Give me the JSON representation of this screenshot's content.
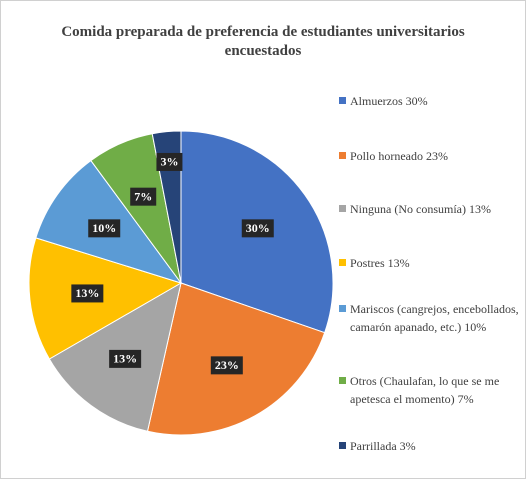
{
  "chart_data": {
    "type": "pie",
    "title": "Comida preparada de preferencia de estudiantes universitarios encuestados",
    "categories": [
      "Almuerzos 30%",
      "Pollo horneado 23%",
      "Ninguna (No consumía) 13%",
      "Postres 13%",
      "Mariscos (cangrejos, encebollados, camarón apanado, etc.) 10%",
      "Otros (Chaulafan, lo que se me apetesca el momento) 7%",
      "Parrillada 3%"
    ],
    "values": [
      30,
      23,
      13,
      13,
      10,
      7,
      3
    ],
    "value_labels": [
      "30%",
      "23%",
      "13%",
      "13%",
      "10%",
      "7%",
      "3%"
    ],
    "colors": [
      "#4472c4",
      "#ed7d31",
      "#a5a5a5",
      "#ffc000",
      "#5b9bd5",
      "#70ad47",
      "#264478"
    ],
    "legend": "right"
  }
}
